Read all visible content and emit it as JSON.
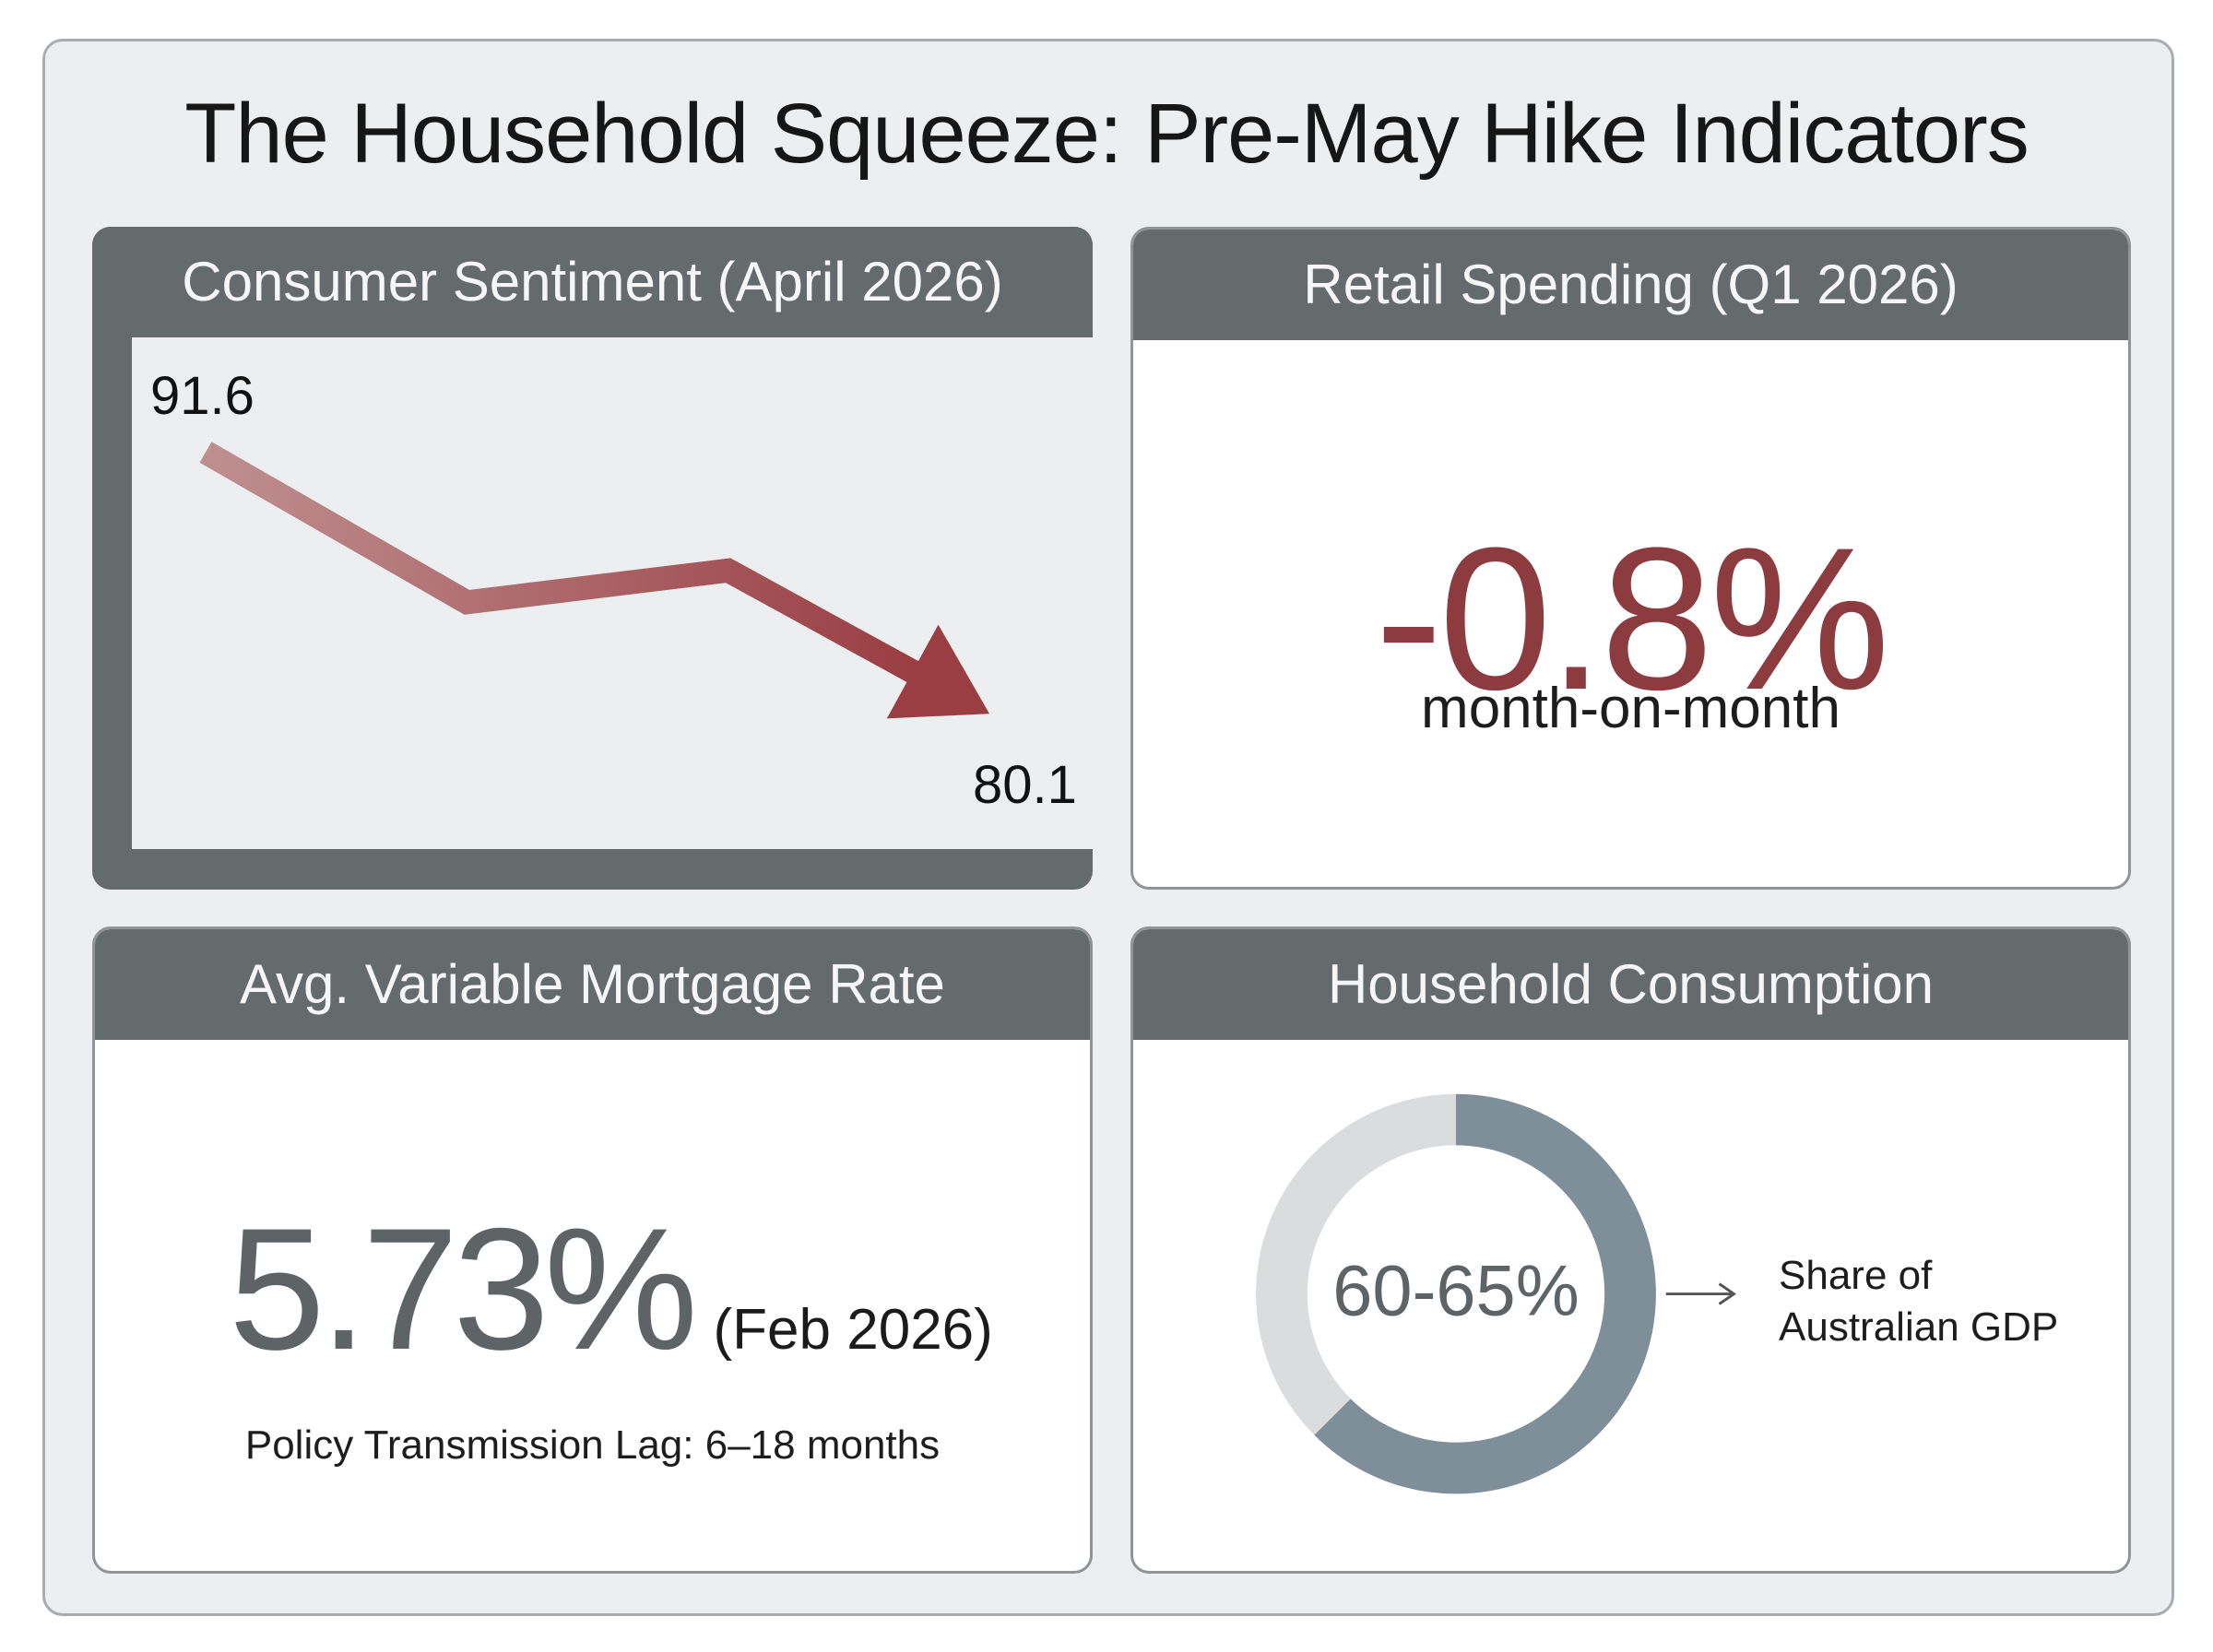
{
  "header": {
    "title": "The Household Squeeze: Pre-May Hike Indicators"
  },
  "cards": {
    "sentiment": {
      "title": "Consumer Sentiment (April 2026)"
    },
    "retail": {
      "title": "Retail Spending (Q1 2026)",
      "value": "-0.8%",
      "caption": "month-on-month"
    },
    "mortgage": {
      "title": "Avg. Variable Mortgage Rate",
      "value": "5.73%",
      "date": "(Feb 2026)",
      "note": "Policy Transmission Lag: 6–18 months"
    },
    "consumption": {
      "title": "Household Consumption",
      "value": "60-65%",
      "note_line1": "Share of",
      "note_line2": "Australian GDP"
    }
  },
  "chart_data": [
    {
      "type": "line",
      "x": [
        1,
        2,
        3,
        4
      ],
      "values": [
        91.6,
        85.0,
        86.4,
        80.1
      ],
      "labels": {
        "start": "91.6",
        "end": "80.1"
      },
      "style": "downward-arrow",
      "ylim": [
        78,
        93
      ]
    },
    {
      "type": "pie",
      "style": "donut",
      "share_range": [
        60,
        65
      ],
      "filled_fraction": 0.625,
      "label": "60-65%"
    }
  ],
  "colors": {
    "header_bg": "#656a6d",
    "negative": "#8c3b3f",
    "donut_fill": "#7f8f9a",
    "donut_track": "#dadcde",
    "rate_text": "#5e6366"
  }
}
